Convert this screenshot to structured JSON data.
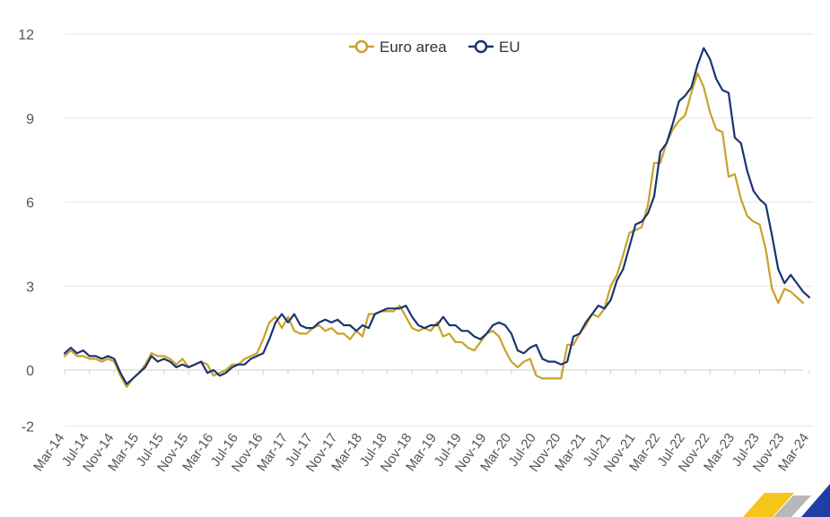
{
  "chart_data": {
    "type": "line",
    "title": "",
    "xlabel": "",
    "ylabel": "",
    "ylim": [
      -2,
      12
    ],
    "y_ticks": [
      12,
      9,
      6,
      3,
      0,
      -2
    ],
    "grid": "horizontal",
    "legend_position": "top-center",
    "x_tick_labels": [
      "Mar-14",
      "Jul-14",
      "Nov-14",
      "Mar-15",
      "Jul-15",
      "Nov-15",
      "Mar-16",
      "Jul-16",
      "Nov-16",
      "Mar-17",
      "Jul-17",
      "Nov-17",
      "Mar-18",
      "Jul-18",
      "Nov-18",
      "Mar-19",
      "Jul-19",
      "Nov-19",
      "Mar-20",
      "Jul-20",
      "Nov-20",
      "Mar-21",
      "Jul-21",
      "Nov-21",
      "Mar-22",
      "Jul-22",
      "Nov-22",
      "Mar-23",
      "Jul-23",
      "Nov-23",
      "Mar-24"
    ],
    "x_start": "Mar-14",
    "series": [
      {
        "name": "Euro area",
        "color": "#c9a227",
        "values": [
          0.5,
          0.7,
          0.5,
          0.5,
          0.4,
          0.4,
          0.3,
          0.4,
          0.3,
          -0.2,
          -0.6,
          -0.3,
          -0.1,
          0.2,
          0.6,
          0.5,
          0.5,
          0.4,
          0.2,
          0.4,
          0.1,
          0.2,
          0.3,
          0.2,
          -0.2,
          -0.1,
          0.0,
          0.2,
          0.2,
          0.4,
          0.5,
          0.6,
          1.1,
          1.7,
          1.9,
          1.5,
          1.9,
          1.4,
          1.3,
          1.3,
          1.5,
          1.6,
          1.4,
          1.5,
          1.3,
          1.3,
          1.1,
          1.4,
          1.2,
          2.0,
          2.0,
          2.1,
          2.1,
          2.1,
          2.3,
          1.9,
          1.5,
          1.4,
          1.5,
          1.4,
          1.7,
          1.2,
          1.3,
          1.0,
          1.0,
          0.8,
          0.7,
          1.0,
          1.3,
          1.4,
          1.2,
          0.7,
          0.3,
          0.1,
          0.3,
          0.4,
          -0.2,
          -0.3,
          -0.3,
          -0.3,
          -0.3,
          0.9,
          0.9,
          1.3,
          1.6,
          2.0,
          1.9,
          2.2,
          3.0,
          3.4,
          4.1,
          4.9,
          5.0,
          5.1,
          5.9,
          7.4,
          7.4,
          8.1,
          8.6,
          8.9,
          9.1,
          9.9,
          10.6,
          10.1,
          9.2,
          8.6,
          8.5,
          6.9,
          7.0,
          6.1,
          5.5,
          5.3,
          5.2,
          4.3,
          2.9,
          2.4,
          2.9,
          2.8,
          2.6,
          2.4
        ]
      },
      {
        "name": "EU",
        "color": "#1a3470",
        "values": [
          0.6,
          0.8,
          0.6,
          0.7,
          0.5,
          0.5,
          0.4,
          0.5,
          0.4,
          -0.1,
          -0.5,
          -0.3,
          -0.1,
          0.1,
          0.5,
          0.3,
          0.4,
          0.3,
          0.1,
          0.2,
          0.1,
          0.2,
          0.3,
          -0.1,
          0.0,
          -0.2,
          -0.1,
          0.1,
          0.2,
          0.2,
          0.4,
          0.5,
          0.6,
          1.1,
          1.7,
          2.0,
          1.7,
          2.0,
          1.6,
          1.5,
          1.5,
          1.7,
          1.8,
          1.7,
          1.8,
          1.6,
          1.6,
          1.4,
          1.6,
          1.5,
          2.0,
          2.1,
          2.2,
          2.2,
          2.2,
          2.3,
          1.9,
          1.6,
          1.5,
          1.6,
          1.6,
          1.9,
          1.6,
          1.6,
          1.4,
          1.4,
          1.2,
          1.1,
          1.3,
          1.6,
          1.7,
          1.6,
          1.3,
          0.7,
          0.6,
          0.8,
          0.9,
          0.4,
          0.3,
          0.3,
          0.2,
          0.3,
          1.2,
          1.3,
          1.7,
          2.0,
          2.3,
          2.2,
          2.5,
          3.2,
          3.6,
          4.4,
          5.2,
          5.3,
          5.6,
          6.2,
          7.8,
          8.1,
          8.8,
          9.6,
          9.8,
          10.1,
          10.9,
          11.5,
          11.1,
          10.4,
          10.0,
          9.9,
          8.3,
          8.1,
          7.1,
          6.4,
          6.1,
          5.9,
          4.8,
          3.6,
          3.1,
          3.4,
          3.1,
          2.8,
          2.6
        ]
      }
    ]
  },
  "colors": {
    "grid": "#e6e6e6",
    "axis": "#cfcfcf",
    "logo_yellow": "#f5c518",
    "logo_gray": "#b8b8b8",
    "logo_blue": "#1f3fa8"
  }
}
